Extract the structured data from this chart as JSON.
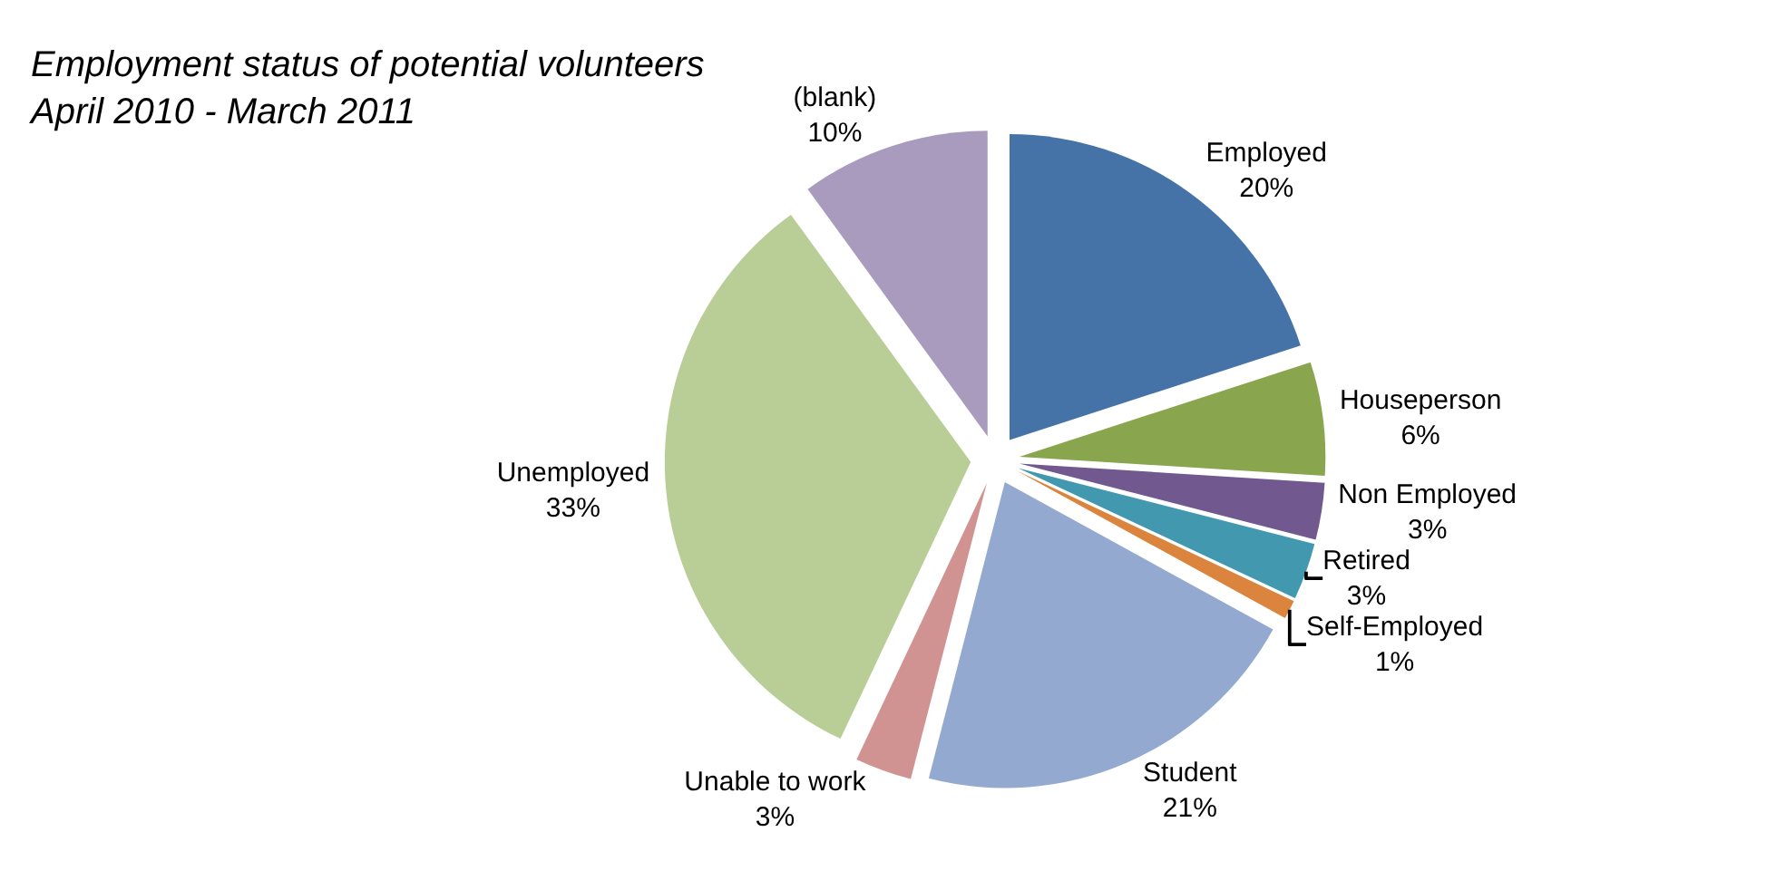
{
  "chart_data": {
    "type": "pie",
    "title": "Employment status of potential volunteers\nApril 2010 - March 2011",
    "categories": [
      "Employed",
      "Houseperson",
      "Non Employed",
      "Retired",
      "Self-Employed",
      "Student",
      "Unable to work",
      "Unemployed",
      "(blank)"
    ],
    "values": [
      20,
      6,
      3,
      3,
      1,
      21,
      3,
      33,
      10
    ],
    "value_labels": [
      "20%",
      "6%",
      "3%",
      "3%",
      "1%",
      "21%",
      "3%",
      "33%",
      "10%"
    ],
    "colors": [
      "#4572a7",
      "#89a54e",
      "#71588f",
      "#4198af",
      "#db843d",
      "#93a9cf",
      "#d19392",
      "#b9cd96",
      "#a99bbd"
    ],
    "legend": false
  }
}
